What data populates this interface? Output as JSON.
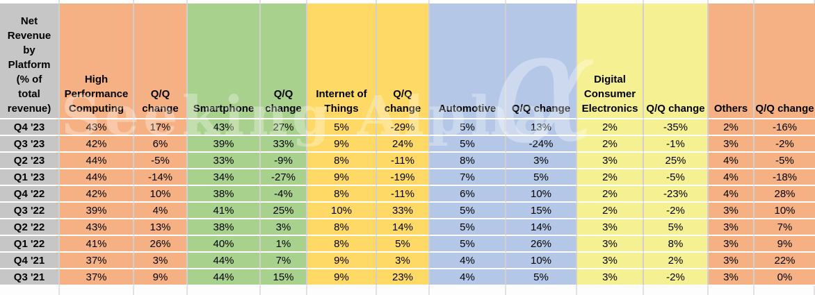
{
  "chart_data": {
    "type": "table",
    "title": "Net Revenue by Platform (% of total revenue)",
    "corner_label": "Net\nRevenue\nby\nPlatform\n(% of\ntotal\nrevenue)",
    "columns": [
      {
        "label": "High Performance Computing",
        "color": "orange"
      },
      {
        "label": "Q/Q change",
        "color": "orange"
      },
      {
        "label": "Smartphone",
        "color": "green"
      },
      {
        "label": "Q/Q change",
        "color": "green"
      },
      {
        "label": "Internet of Things",
        "color": "gold"
      },
      {
        "label": "Q/Q change",
        "color": "gold"
      },
      {
        "label": "Automotive",
        "color": "blue"
      },
      {
        "label": "Q/Q change",
        "color": "blue"
      },
      {
        "label": "Digital Consumer Electronics",
        "color": "pale_yellow"
      },
      {
        "label": "Q/Q change",
        "color": "pale_yellow"
      },
      {
        "label": "Others",
        "color": "orange"
      },
      {
        "label": "Q/Q change",
        "color": "orange"
      }
    ],
    "row_labels": [
      "Q4 '23",
      "Q3 '23",
      "Q2 '23",
      "Q1 '23",
      "Q4 '22",
      "Q3 '22",
      "Q2 '22",
      "Q1 '22",
      "Q4 '21",
      "Q3 '21"
    ],
    "rows": [
      [
        "43%",
        "17%",
        "43%",
        "27%",
        "5%",
        "-29%",
        "5%",
        "13%",
        "2%",
        "-35%",
        "2%",
        "-16%"
      ],
      [
        "42%",
        "6%",
        "39%",
        "33%",
        "9%",
        "24%",
        "5%",
        "-24%",
        "2%",
        "-1%",
        "3%",
        "-2%"
      ],
      [
        "44%",
        "-5%",
        "33%",
        "-9%",
        "8%",
        "-11%",
        "8%",
        "3%",
        "3%",
        "25%",
        "4%",
        "-5%"
      ],
      [
        "44%",
        "-14%",
        "34%",
        "-27%",
        "9%",
        "-19%",
        "7%",
        "5%",
        "2%",
        "-5%",
        "4%",
        "-18%"
      ],
      [
        "42%",
        "10%",
        "38%",
        "-4%",
        "8%",
        "-11%",
        "6%",
        "10%",
        "2%",
        "-23%",
        "4%",
        "28%"
      ],
      [
        "39%",
        "4%",
        "41%",
        "25%",
        "10%",
        "33%",
        "5%",
        "15%",
        "2%",
        "-2%",
        "3%",
        "10%"
      ],
      [
        "43%",
        "13%",
        "38%",
        "3%",
        "8%",
        "14%",
        "5%",
        "14%",
        "3%",
        "5%",
        "3%",
        "7%"
      ],
      [
        "41%",
        "26%",
        "40%",
        "1%",
        "8%",
        "5%",
        "5%",
        "26%",
        "3%",
        "8%",
        "3%",
        "9%"
      ],
      [
        "37%",
        "3%",
        "44%",
        "7%",
        "9%",
        "3%",
        "4%",
        "10%",
        "3%",
        "2%",
        "3%",
        "22%"
      ],
      [
        "37%",
        "9%",
        "44%",
        "15%",
        "9%",
        "23%",
        "4%",
        "5%",
        "3%",
        "-2%",
        "3%",
        "0%"
      ]
    ]
  },
  "watermark": {
    "text": "Seeking Alpha",
    "symbol": "α"
  },
  "colors": {
    "orange": "#F5B183",
    "green": "#A9D18E",
    "gold": "#FFD966",
    "blue": "#B4C7E7",
    "pale_yellow": "#F5F092",
    "label_gray": "#C6C6C6",
    "grid_vertical": "#D2CFCF",
    "grid_horizontal": "#FFFFFF",
    "text": "#000000"
  }
}
